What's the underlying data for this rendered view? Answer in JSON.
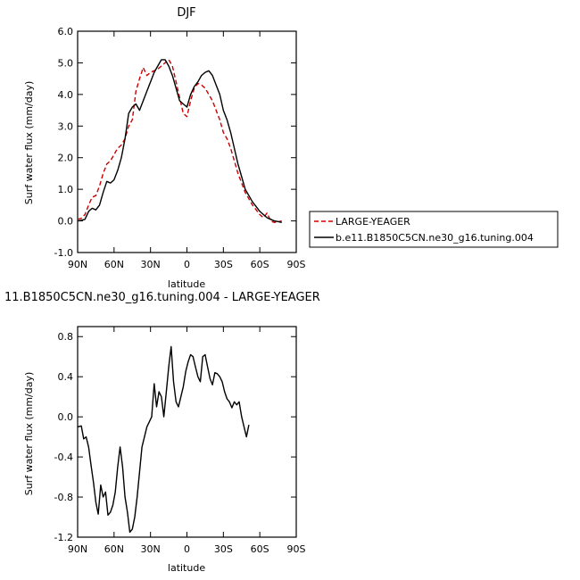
{
  "chart_data": [
    {
      "type": "line",
      "title": "DJF",
      "xlabel": "latitude",
      "ylabel": "Surf water flux (mm/day)",
      "xlim": [
        -90,
        90
      ],
      "ylim": [
        -1.0,
        6.0
      ],
      "x_ticks": [
        -90,
        -60,
        -30,
        0,
        30,
        60,
        90
      ],
      "x_tick_labels": [
        "90N",
        "60N",
        "30N",
        "0",
        "30S",
        "60S",
        "90S"
      ],
      "y_ticks": [
        -1.0,
        0.0,
        1.0,
        2.0,
        3.0,
        4.0,
        5.0,
        6.0
      ],
      "y_tick_labels": [
        "-1.0",
        "0.0",
        "1.0",
        "2.0",
        "3.0",
        "4.0",
        "5.0",
        "6.0"
      ],
      "legend_position": "outside right",
      "series": [
        {
          "name": "LARGE-YEAGER",
          "color": "#cc0000",
          "style": "dashed",
          "points": [
            [
              -90,
              0.05
            ],
            [
              -87,
              0.08
            ],
            [
              -84,
              0.2
            ],
            [
              -81,
              0.5
            ],
            [
              -78,
              0.75
            ],
            [
              -75,
              0.8
            ],
            [
              -72,
              1.1
            ],
            [
              -69,
              1.5
            ],
            [
              -66,
              1.8
            ],
            [
              -63,
              1.9
            ],
            [
              -60,
              2.1
            ],
            [
              -57,
              2.3
            ],
            [
              -54,
              2.4
            ],
            [
              -51,
              2.6
            ],
            [
              -48,
              3.0
            ],
            [
              -45,
              3.2
            ],
            [
              -42,
              4.1
            ],
            [
              -39,
              4.5
            ],
            [
              -36,
              4.85
            ],
            [
              -33,
              4.6
            ],
            [
              -30,
              4.7
            ],
            [
              -27,
              4.75
            ],
            [
              -24,
              4.8
            ],
            [
              -21,
              4.9
            ],
            [
              -18,
              5.0
            ],
            [
              -15,
              5.1
            ],
            [
              -12,
              4.9
            ],
            [
              -9,
              4.4
            ],
            [
              -6,
              3.9
            ],
            [
              -3,
              3.4
            ],
            [
              0,
              3.3
            ],
            [
              3,
              3.8
            ],
            [
              6,
              4.2
            ],
            [
              9,
              4.35
            ],
            [
              12,
              4.3
            ],
            [
              15,
              4.2
            ],
            [
              18,
              4.0
            ],
            [
              21,
              3.8
            ],
            [
              24,
              3.5
            ],
            [
              27,
              3.2
            ],
            [
              30,
              2.8
            ],
            [
              33,
              2.6
            ],
            [
              36,
              2.3
            ],
            [
              39,
              1.9
            ],
            [
              42,
              1.5
            ],
            [
              45,
              1.2
            ],
            [
              48,
              0.9
            ],
            [
              51,
              0.7
            ],
            [
              54,
              0.5
            ],
            [
              57,
              0.35
            ],
            [
              60,
              0.2
            ],
            [
              63,
              0.1
            ],
            [
              66,
              0.25
            ],
            [
              69,
              0.0
            ],
            [
              72,
              -0.05
            ],
            [
              75,
              -0.03
            ],
            [
              78,
              0.0
            ]
          ]
        },
        {
          "name": "b.e11.B1850C5CN.ne30_g16.tuning.004",
          "color": "#000000",
          "style": "solid",
          "points": [
            [
              -90,
              0.0
            ],
            [
              -87,
              0.02
            ],
            [
              -84,
              0.05
            ],
            [
              -81,
              0.3
            ],
            [
              -78,
              0.4
            ],
            [
              -75,
              0.35
            ],
            [
              -72,
              0.5
            ],
            [
              -69,
              0.9
            ],
            [
              -66,
              1.25
            ],
            [
              -63,
              1.2
            ],
            [
              -60,
              1.3
            ],
            [
              -57,
              1.6
            ],
            [
              -54,
              2.0
            ],
            [
              -51,
              2.6
            ],
            [
              -48,
              3.4
            ],
            [
              -45,
              3.6
            ],
            [
              -42,
              3.7
            ],
            [
              -39,
              3.5
            ],
            [
              -36,
              3.8
            ],
            [
              -33,
              4.1
            ],
            [
              -30,
              4.4
            ],
            [
              -27,
              4.7
            ],
            [
              -24,
              4.9
            ],
            [
              -21,
              5.1
            ],
            [
              -18,
              5.1
            ],
            [
              -15,
              4.9
            ],
            [
              -12,
              4.6
            ],
            [
              -9,
              4.2
            ],
            [
              -6,
              3.8
            ],
            [
              -3,
              3.7
            ],
            [
              0,
              3.6
            ],
            [
              3,
              4.0
            ],
            [
              6,
              4.25
            ],
            [
              9,
              4.4
            ],
            [
              12,
              4.6
            ],
            [
              15,
              4.7
            ],
            [
              18,
              4.75
            ],
            [
              21,
              4.6
            ],
            [
              24,
              4.3
            ],
            [
              27,
              4.0
            ],
            [
              30,
              3.5
            ],
            [
              33,
              3.2
            ],
            [
              36,
              2.8
            ],
            [
              39,
              2.3
            ],
            [
              42,
              1.8
            ],
            [
              45,
              1.4
            ],
            [
              48,
              1.0
            ],
            [
              51,
              0.8
            ],
            [
              54,
              0.6
            ],
            [
              57,
              0.45
            ],
            [
              60,
              0.3
            ],
            [
              63,
              0.2
            ],
            [
              66,
              0.1
            ],
            [
              69,
              0.05
            ],
            [
              72,
              0.0
            ],
            [
              75,
              -0.02
            ],
            [
              78,
              -0.05
            ]
          ]
        }
      ]
    },
    {
      "type": "line",
      "title": "11.B1850C5CN.ne30_g16.tuning.004 - LARGE-YEAGER",
      "xlabel": "latitude",
      "ylabel": "Surf water flux (mm/day)",
      "xlim": [
        -90,
        90
      ],
      "ylim": [
        -1.2,
        0.9
      ],
      "x_ticks": [
        -90,
        -60,
        -30,
        0,
        30,
        60,
        90
      ],
      "x_tick_labels": [
        "90N",
        "60N",
        "30N",
        "0",
        "30S",
        "60S",
        "90S"
      ],
      "y_ticks": [
        -1.2,
        -0.8,
        -0.4,
        0.0,
        0.4,
        0.8
      ],
      "y_tick_labels": [
        "-1.2",
        "-0.8",
        "-0.4",
        "0.0",
        "0.4",
        "0.8"
      ],
      "series": [
        {
          "color": "#000000",
          "style": "solid",
          "points": [
            [
              -90,
              -0.1
            ],
            [
              -87,
              -0.09
            ],
            [
              -85,
              -0.22
            ],
            [
              -83,
              -0.2
            ],
            [
              -81,
              -0.3
            ],
            [
              -79,
              -0.48
            ],
            [
              -77,
              -0.65
            ],
            [
              -75,
              -0.85
            ],
            [
              -73,
              -0.97
            ],
            [
              -71,
              -0.68
            ],
            [
              -69,
              -0.8
            ],
            [
              -67,
              -0.75
            ],
            [
              -65,
              -0.98
            ],
            [
              -63,
              -0.95
            ],
            [
              -61,
              -0.88
            ],
            [
              -59,
              -0.75
            ],
            [
              -57,
              -0.5
            ],
            [
              -55,
              -0.3
            ],
            [
              -53,
              -0.5
            ],
            [
              -51,
              -0.8
            ],
            [
              -49,
              -0.95
            ],
            [
              -47,
              -1.15
            ],
            [
              -45,
              -1.12
            ],
            [
              -43,
              -1.0
            ],
            [
              -41,
              -0.8
            ],
            [
              -39,
              -0.55
            ],
            [
              -37,
              -0.3
            ],
            [
              -35,
              -0.2
            ],
            [
              -33,
              -0.1
            ],
            [
              -31,
              -0.05
            ],
            [
              -29,
              0.0
            ],
            [
              -27,
              0.33
            ],
            [
              -25,
              0.1
            ],
            [
              -23,
              0.25
            ],
            [
              -21,
              0.2
            ],
            [
              -19,
              0.0
            ],
            [
              -17,
              0.25
            ],
            [
              -15,
              0.5
            ],
            [
              -13,
              0.7
            ],
            [
              -11,
              0.35
            ],
            [
              -9,
              0.15
            ],
            [
              -7,
              0.1
            ],
            [
              -5,
              0.2
            ],
            [
              -3,
              0.3
            ],
            [
              -1,
              0.45
            ],
            [
              1,
              0.55
            ],
            [
              3,
              0.62
            ],
            [
              5,
              0.6
            ],
            [
              7,
              0.5
            ],
            [
              9,
              0.4
            ],
            [
              11,
              0.35
            ],
            [
              13,
              0.6
            ],
            [
              15,
              0.62
            ],
            [
              17,
              0.5
            ],
            [
              19,
              0.38
            ],
            [
              21,
              0.32
            ],
            [
              23,
              0.44
            ],
            [
              25,
              0.43
            ],
            [
              27,
              0.4
            ],
            [
              29,
              0.35
            ],
            [
              31,
              0.25
            ],
            [
              33,
              0.18
            ],
            [
              35,
              0.15
            ],
            [
              37,
              0.09
            ],
            [
              39,
              0.15
            ],
            [
              41,
              0.12
            ],
            [
              43,
              0.15
            ],
            [
              45,
              0.0
            ],
            [
              47,
              -0.1
            ],
            [
              49,
              -0.2
            ],
            [
              51,
              -0.08
            ]
          ]
        }
      ]
    }
  ]
}
